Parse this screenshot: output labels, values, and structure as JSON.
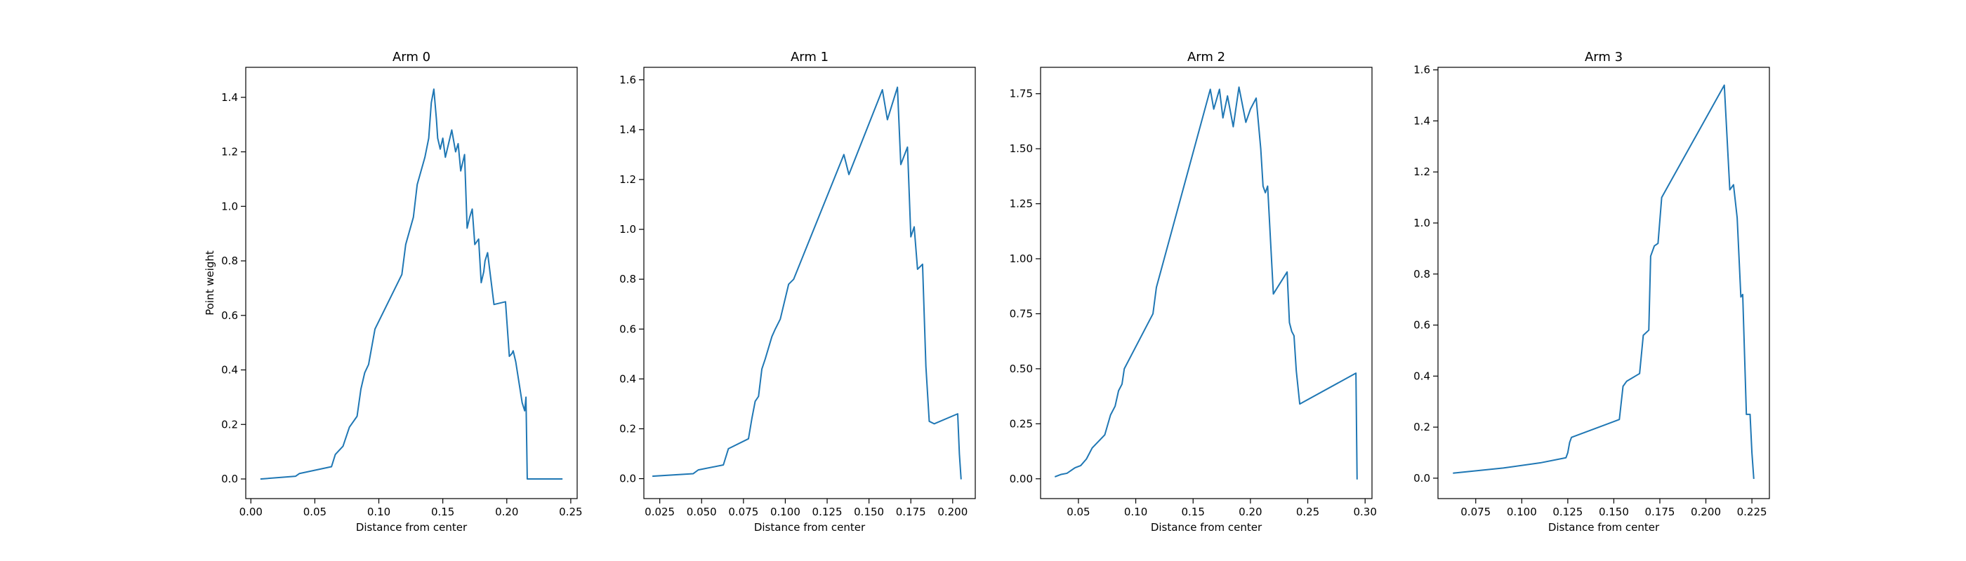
{
  "chart_data": [
    {
      "type": "line",
      "title": "Arm 0",
      "xlabel": "Distance from center",
      "ylabel": "Point weight",
      "xlim": [
        -0.004,
        0.255
      ],
      "ylim": [
        -0.072,
        1.51
      ],
      "xticks": [
        0.0,
        0.05,
        0.1,
        0.15,
        0.2,
        0.25
      ],
      "xtick_labels": [
        "0.00",
        "0.05",
        "0.10",
        "0.15",
        "0.20",
        "0.25"
      ],
      "yticks": [
        0.0,
        0.2,
        0.4,
        0.6,
        0.8,
        1.0,
        1.2,
        1.4
      ],
      "ytick_labels": [
        "0.0",
        "0.2",
        "0.4",
        "0.6",
        "0.8",
        "1.0",
        "1.2",
        "1.4"
      ],
      "color": "#1f77b4",
      "x": [
        0.008,
        0.035,
        0.038,
        0.063,
        0.066,
        0.072,
        0.077,
        0.083,
        0.086,
        0.089,
        0.092,
        0.097,
        0.118,
        0.121,
        0.127,
        0.13,
        0.136,
        0.139,
        0.141,
        0.143,
        0.145,
        0.146,
        0.148,
        0.15,
        0.152,
        0.155,
        0.157,
        0.16,
        0.162,
        0.164,
        0.166,
        0.167,
        0.169,
        0.171,
        0.173,
        0.175,
        0.178,
        0.18,
        0.182,
        0.183,
        0.185,
        0.19,
        0.199,
        0.202,
        0.204,
        0.205,
        0.207,
        0.212,
        0.214,
        0.215,
        0.216,
        0.217,
        0.24,
        0.243
      ],
      "y": [
        0.0,
        0.01,
        0.02,
        0.045,
        0.09,
        0.12,
        0.19,
        0.23,
        0.33,
        0.39,
        0.42,
        0.55,
        0.75,
        0.86,
        0.96,
        1.08,
        1.18,
        1.25,
        1.38,
        1.43,
        1.32,
        1.25,
        1.21,
        1.25,
        1.18,
        1.24,
        1.28,
        1.2,
        1.23,
        1.13,
        1.17,
        1.19,
        0.92,
        0.96,
        0.99,
        0.86,
        0.88,
        0.72,
        0.76,
        0.8,
        0.83,
        0.64,
        0.65,
        0.45,
        0.46,
        0.47,
        0.43,
        0.28,
        0.25,
        0.3,
        0.0,
        0.0,
        0.0,
        0.0
      ]
    },
    {
      "type": "line",
      "title": "Arm 1",
      "xlabel": "Distance from center",
      "ylabel": "",
      "xlim": [
        0.0155,
        0.2135
      ],
      "ylim": [
        -0.08,
        1.65
      ],
      "xticks": [
        0.025,
        0.05,
        0.075,
        0.1,
        0.125,
        0.15,
        0.175,
        0.2
      ],
      "xtick_labels": [
        "0.025",
        "0.050",
        "0.075",
        "0.100",
        "0.125",
        "0.150",
        "0.175",
        "0.200"
      ],
      "yticks": [
        0.0,
        0.2,
        0.4,
        0.6,
        0.8,
        1.0,
        1.2,
        1.4,
        1.6
      ],
      "ytick_labels": [
        "0.0",
        "0.2",
        "0.4",
        "0.6",
        "0.8",
        "1.0",
        "1.2",
        "1.4",
        "1.6"
      ],
      "color": "#1f77b4",
      "x": [
        0.021,
        0.045,
        0.048,
        0.063,
        0.066,
        0.078,
        0.08,
        0.082,
        0.084,
        0.086,
        0.088,
        0.092,
        0.094,
        0.097,
        0.102,
        0.105,
        0.135,
        0.138,
        0.158,
        0.161,
        0.167,
        0.169,
        0.173,
        0.175,
        0.177,
        0.179,
        0.182,
        0.184,
        0.186,
        0.189,
        0.203,
        0.204,
        0.205
      ],
      "y": [
        0.01,
        0.02,
        0.035,
        0.055,
        0.12,
        0.16,
        0.24,
        0.31,
        0.33,
        0.44,
        0.48,
        0.57,
        0.6,
        0.64,
        0.78,
        0.8,
        1.3,
        1.22,
        1.56,
        1.44,
        1.57,
        1.26,
        1.33,
        0.97,
        1.01,
        0.84,
        0.86,
        0.45,
        0.23,
        0.22,
        0.26,
        0.1,
        0.0
      ]
    },
    {
      "type": "line",
      "title": "Arm 2",
      "xlabel": "Distance from center",
      "ylabel": "",
      "xlim": [
        0.017,
        0.306
      ],
      "ylim": [
        -0.09,
        1.87
      ],
      "xticks": [
        0.05,
        0.1,
        0.15,
        0.2,
        0.25,
        0.3
      ],
      "xtick_labels": [
        "0.05",
        "0.10",
        "0.15",
        "0.20",
        "0.25",
        "0.30"
      ],
      "yticks": [
        0.0,
        0.25,
        0.5,
        0.75,
        1.0,
        1.25,
        1.5,
        1.75
      ],
      "ytick_labels": [
        "0.00",
        "0.25",
        "0.50",
        "0.75",
        "1.00",
        "1.25",
        "1.50",
        "1.75"
      ],
      "color": "#1f77b4",
      "x": [
        0.03,
        0.035,
        0.04,
        0.047,
        0.052,
        0.057,
        0.062,
        0.073,
        0.078,
        0.082,
        0.085,
        0.088,
        0.09,
        0.115,
        0.118,
        0.165,
        0.168,
        0.173,
        0.176,
        0.18,
        0.185,
        0.19,
        0.196,
        0.2,
        0.205,
        0.209,
        0.211,
        0.213,
        0.215,
        0.22,
        0.232,
        0.234,
        0.236,
        0.238,
        0.24,
        0.243,
        0.292,
        0.293
      ],
      "y": [
        0.01,
        0.02,
        0.025,
        0.05,
        0.06,
        0.09,
        0.14,
        0.2,
        0.29,
        0.33,
        0.4,
        0.43,
        0.5,
        0.75,
        0.87,
        1.77,
        1.68,
        1.77,
        1.64,
        1.74,
        1.6,
        1.78,
        1.62,
        1.68,
        1.73,
        1.5,
        1.33,
        1.3,
        1.33,
        0.84,
        0.94,
        0.71,
        0.67,
        0.65,
        0.49,
        0.34,
        0.48,
        0.0
      ]
    },
    {
      "type": "line",
      "title": "Arm 3",
      "xlabel": "Distance from center",
      "ylabel": "",
      "xlim": [
        0.0545,
        0.2345
      ],
      "ylim": [
        -0.08,
        1.61
      ],
      "xticks": [
        0.075,
        0.1,
        0.125,
        0.15,
        0.175,
        0.2,
        0.225
      ],
      "xtick_labels": [
        "0.075",
        "0.100",
        "0.125",
        "0.150",
        "0.175",
        "0.200",
        "0.225"
      ],
      "yticks": [
        0.0,
        0.2,
        0.4,
        0.6,
        0.8,
        1.0,
        1.2,
        1.4,
        1.6
      ],
      "ytick_labels": [
        "0.0",
        "0.2",
        "0.4",
        "0.6",
        "0.8",
        "1.0",
        "1.2",
        "1.4",
        "1.6"
      ],
      "color": "#1f77b4",
      "x": [
        0.063,
        0.09,
        0.11,
        0.124,
        0.125,
        0.126,
        0.127,
        0.153,
        0.155,
        0.157,
        0.164,
        0.166,
        0.169,
        0.17,
        0.172,
        0.174,
        0.176,
        0.21,
        0.213,
        0.215,
        0.217,
        0.219,
        0.22,
        0.222,
        0.224,
        0.225,
        0.226
      ],
      "y": [
        0.02,
        0.04,
        0.06,
        0.08,
        0.1,
        0.14,
        0.16,
        0.23,
        0.36,
        0.38,
        0.41,
        0.56,
        0.58,
        0.87,
        0.91,
        0.92,
        1.1,
        1.54,
        1.13,
        1.15,
        1.02,
        0.71,
        0.72,
        0.25,
        0.25,
        0.1,
        0.0
      ]
    }
  ]
}
